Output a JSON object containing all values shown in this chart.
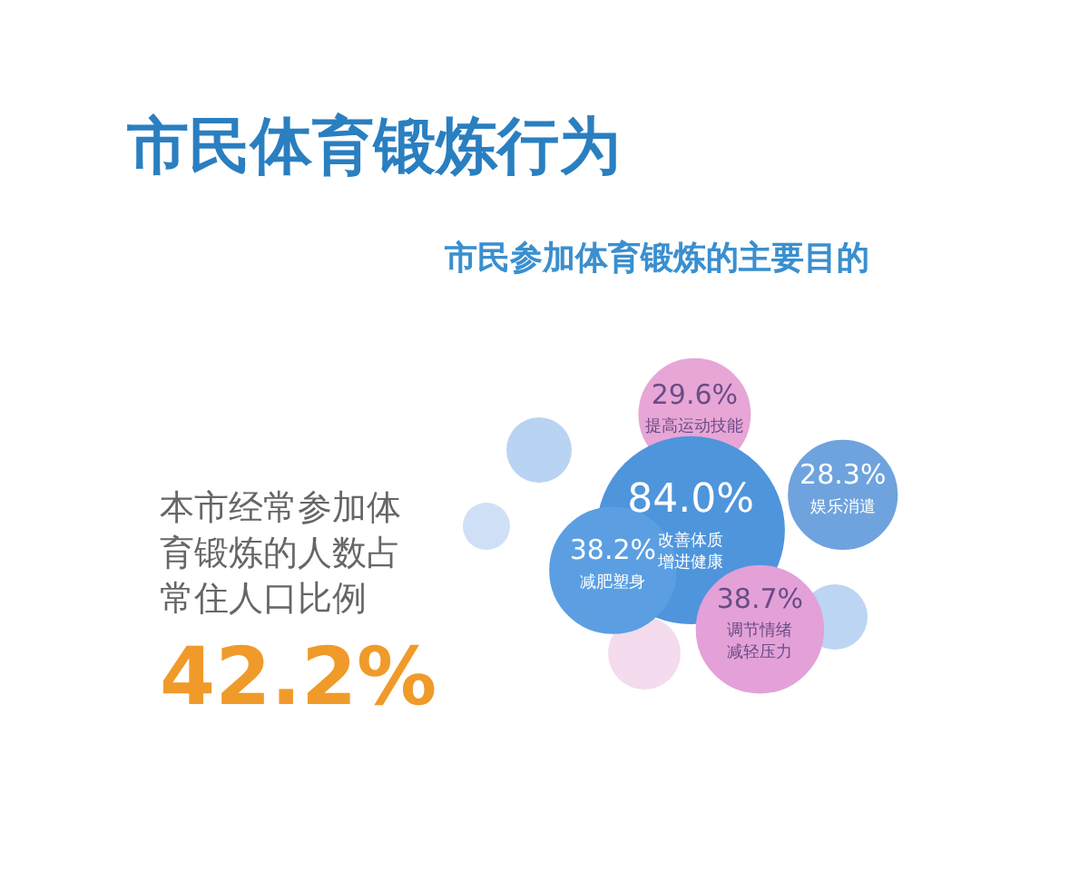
{
  "chart_data": {
    "type": "other",
    "title": "市民体育锻炼行为",
    "subtitle": "市民参加体育锻炼的主要目的",
    "categories": [
      "提高运动技能",
      "娱乐消遣",
      "改善体质增进健康",
      "减肥塑身",
      "调节情绪减轻压力"
    ],
    "values": [
      29.6,
      28.3,
      84.0,
      38.2,
      38.7
    ],
    "value_labels": [
      "29.6%",
      "28.3%",
      "84.0%",
      "38.2%",
      "38.7%"
    ],
    "colors": [
      "#e7a6d6",
      "#6fa3de",
      "#4f95dc",
      "#5b9fe2",
      "#e3a1d8"
    ],
    "annotations": [
      "本市经常参加体育锻炼的人数占常住人口比例",
      "42.2%"
    ]
  }
}
